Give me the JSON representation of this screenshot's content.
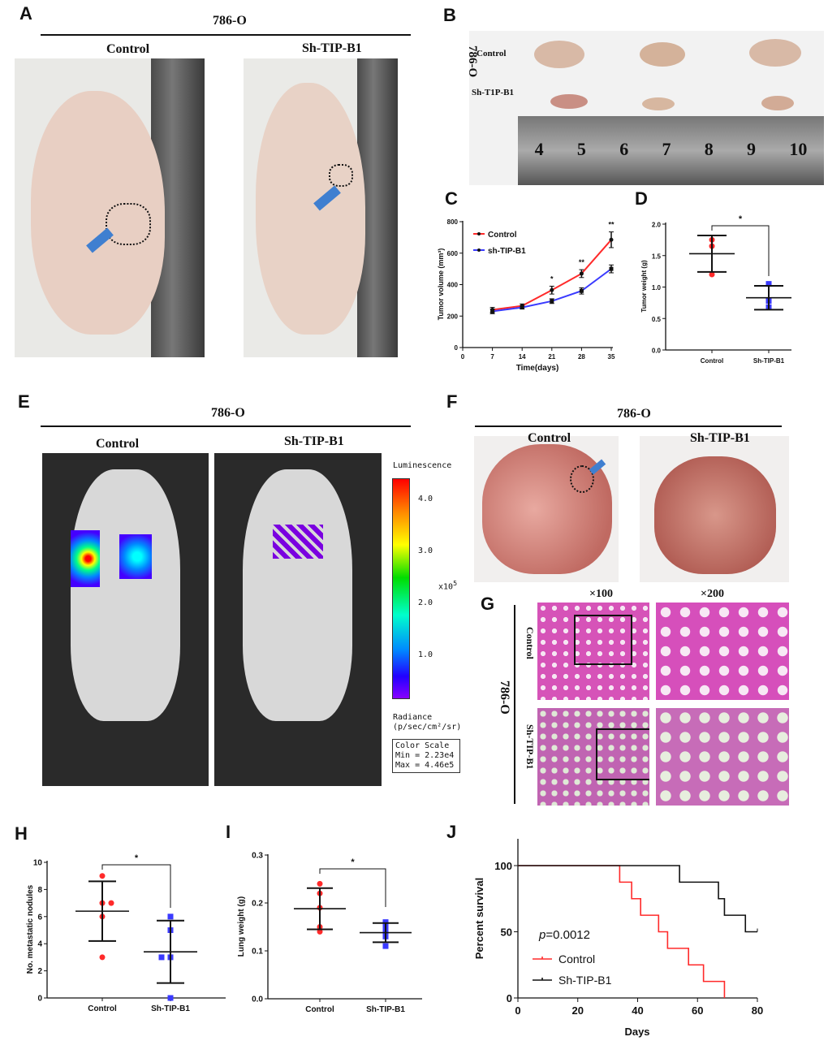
{
  "panels": {
    "A": {
      "label": "A",
      "cell_line": "786-O",
      "left": "Control",
      "right": "Sh-TIP-B1"
    },
    "B": {
      "label": "B",
      "cell_line": "786-O",
      "row1": "Control",
      "row2": "Sh-T1P-B1",
      "ruler": [
        "4",
        "5",
        "6",
        "7",
        "8",
        "9",
        "10"
      ]
    },
    "C": {
      "label": "C"
    },
    "D": {
      "label": "D"
    },
    "E": {
      "label": "E",
      "cell_line": "786-O",
      "left": "Control",
      "right": "Sh-TIP-B1",
      "scale_title": "Luminescence",
      "scale_ticks": [
        "4.0",
        "3.0",
        "2.0",
        "1.0"
      ],
      "scale_unit": "x10",
      "scale_exp": "5",
      "radiance": "Radiance",
      "radiance_unit": "(p/sec/cm²/sr)",
      "color_scale": "Color Scale",
      "min": "Min = 2.23e4",
      "max": "Max = 4.46e5"
    },
    "F": {
      "label": "F",
      "cell_line": "786-O",
      "left": "Control",
      "right": "Sh-TIP-B1"
    },
    "G": {
      "label": "G",
      "cell_line": "786-O",
      "mag1": "×100",
      "mag2": "×200",
      "row1": "Control",
      "row2": "Sh-TIP-B1"
    },
    "H": {
      "label": "H"
    },
    "I": {
      "label": "I"
    },
    "J": {
      "label": "J"
    }
  },
  "colors": {
    "control": "#ff2a2a",
    "sh": "#3a3aff",
    "survival_sh": "#111111"
  },
  "chart_data": [
    {
      "id": "C",
      "type": "line",
      "xlabel": "Time(days)",
      "ylabel": "Tumor volume (mm³)",
      "xlim": [
        0,
        35
      ],
      "ylim": [
        0,
        800
      ],
      "xticks": [
        0,
        7,
        14,
        21,
        28,
        35
      ],
      "yticks": [
        0,
        200,
        400,
        600,
        800
      ],
      "x": [
        7,
        14,
        21,
        28,
        35
      ],
      "significance": [
        "",
        "",
        "*",
        "**",
        "**"
      ],
      "legend": "top-left",
      "series": [
        {
          "name": "Control",
          "values": [
            240,
            265,
            365,
            470,
            685
          ],
          "errors": [
            15,
            12,
            25,
            25,
            50
          ]
        },
        {
          "name": "sh-TIP-B1",
          "values": [
            230,
            255,
            295,
            360,
            500
          ],
          "errors": [
            15,
            10,
            15,
            20,
            25
          ]
        }
      ]
    },
    {
      "id": "D",
      "type": "scatter",
      "ylabel": "Tumor weight (g)",
      "ylim": [
        0,
        2
      ],
      "yticks": [
        "0.0",
        "0.5",
        "1.0",
        "1.5",
        "2.0"
      ],
      "categories": [
        "Control",
        "Sh-TIP-B1"
      ],
      "significance": "*",
      "groups": [
        {
          "name": "Control",
          "points": [
            1.75,
            1.65,
            1.2
          ],
          "mean": 1.53,
          "sd": 0.29
        },
        {
          "name": "Sh-TIP-B1",
          "points": [
            1.05,
            0.78,
            0.68
          ],
          "mean": 0.83,
          "sd": 0.19
        }
      ]
    },
    {
      "id": "H",
      "type": "scatter",
      "ylabel": "No. metastatic nodules",
      "ylim": [
        0,
        10
      ],
      "yticks": [
        "0",
        "2",
        "4",
        "6",
        "8",
        "10"
      ],
      "categories": [
        "Control",
        "Sh-TIP-B1"
      ],
      "significance": "*",
      "groups": [
        {
          "name": "Control",
          "points": [
            9,
            7,
            7,
            6,
            3
          ],
          "mean": 6.4,
          "sd": 2.2
        },
        {
          "name": "Sh-TIP-B1",
          "points": [
            6,
            5,
            3,
            3,
            0
          ],
          "mean": 3.4,
          "sd": 2.3
        }
      ]
    },
    {
      "id": "I",
      "type": "scatter",
      "ylabel": "Lung weight (g)",
      "ylim": [
        0,
        0.3
      ],
      "yticks": [
        "0.0",
        "0.1",
        "0.2",
        "0.3"
      ],
      "categories": [
        "Control",
        "Sh-TIP-B1"
      ],
      "significance": "*",
      "groups": [
        {
          "name": "Control",
          "points": [
            0.24,
            0.22,
            0.19,
            0.15,
            0.14
          ],
          "mean": 0.188,
          "sd": 0.043
        },
        {
          "name": "Sh-TIP-B1",
          "points": [
            0.16,
            0.15,
            0.14,
            0.13,
            0.11
          ],
          "mean": 0.138,
          "sd": 0.02
        }
      ]
    },
    {
      "id": "J",
      "type": "line",
      "subtype": "kaplan-meier",
      "xlabel": "Days",
      "ylabel": "Percent survival",
      "xlim": [
        0,
        80
      ],
      "ylim": [
        0,
        120
      ],
      "xticks": [
        "0",
        "20",
        "40",
        "60",
        "80"
      ],
      "yticks": [
        "0",
        "50",
        "100"
      ],
      "annotation": "p=0.0012",
      "annotation_italic": "p",
      "annotation_rest": "=0.0012",
      "legend": "bottom-left",
      "series": [
        {
          "name": "Control",
          "steps": [
            [
              0,
              100
            ],
            [
              34,
              87.5
            ],
            [
              38,
              75
            ],
            [
              41,
              62.5
            ],
            [
              47,
              50
            ],
            [
              50,
              37.5
            ],
            [
              57,
              25
            ],
            [
              62,
              12.5
            ],
            [
              69,
              0
            ]
          ],
          "end": 69
        },
        {
          "name": "Sh-TIP-B1",
          "steps": [
            [
              0,
              100
            ],
            [
              54,
              87.5
            ],
            [
              67,
              75
            ],
            [
              69,
              62.5
            ],
            [
              76,
              50
            ]
          ],
          "end": 80
        }
      ]
    }
  ]
}
